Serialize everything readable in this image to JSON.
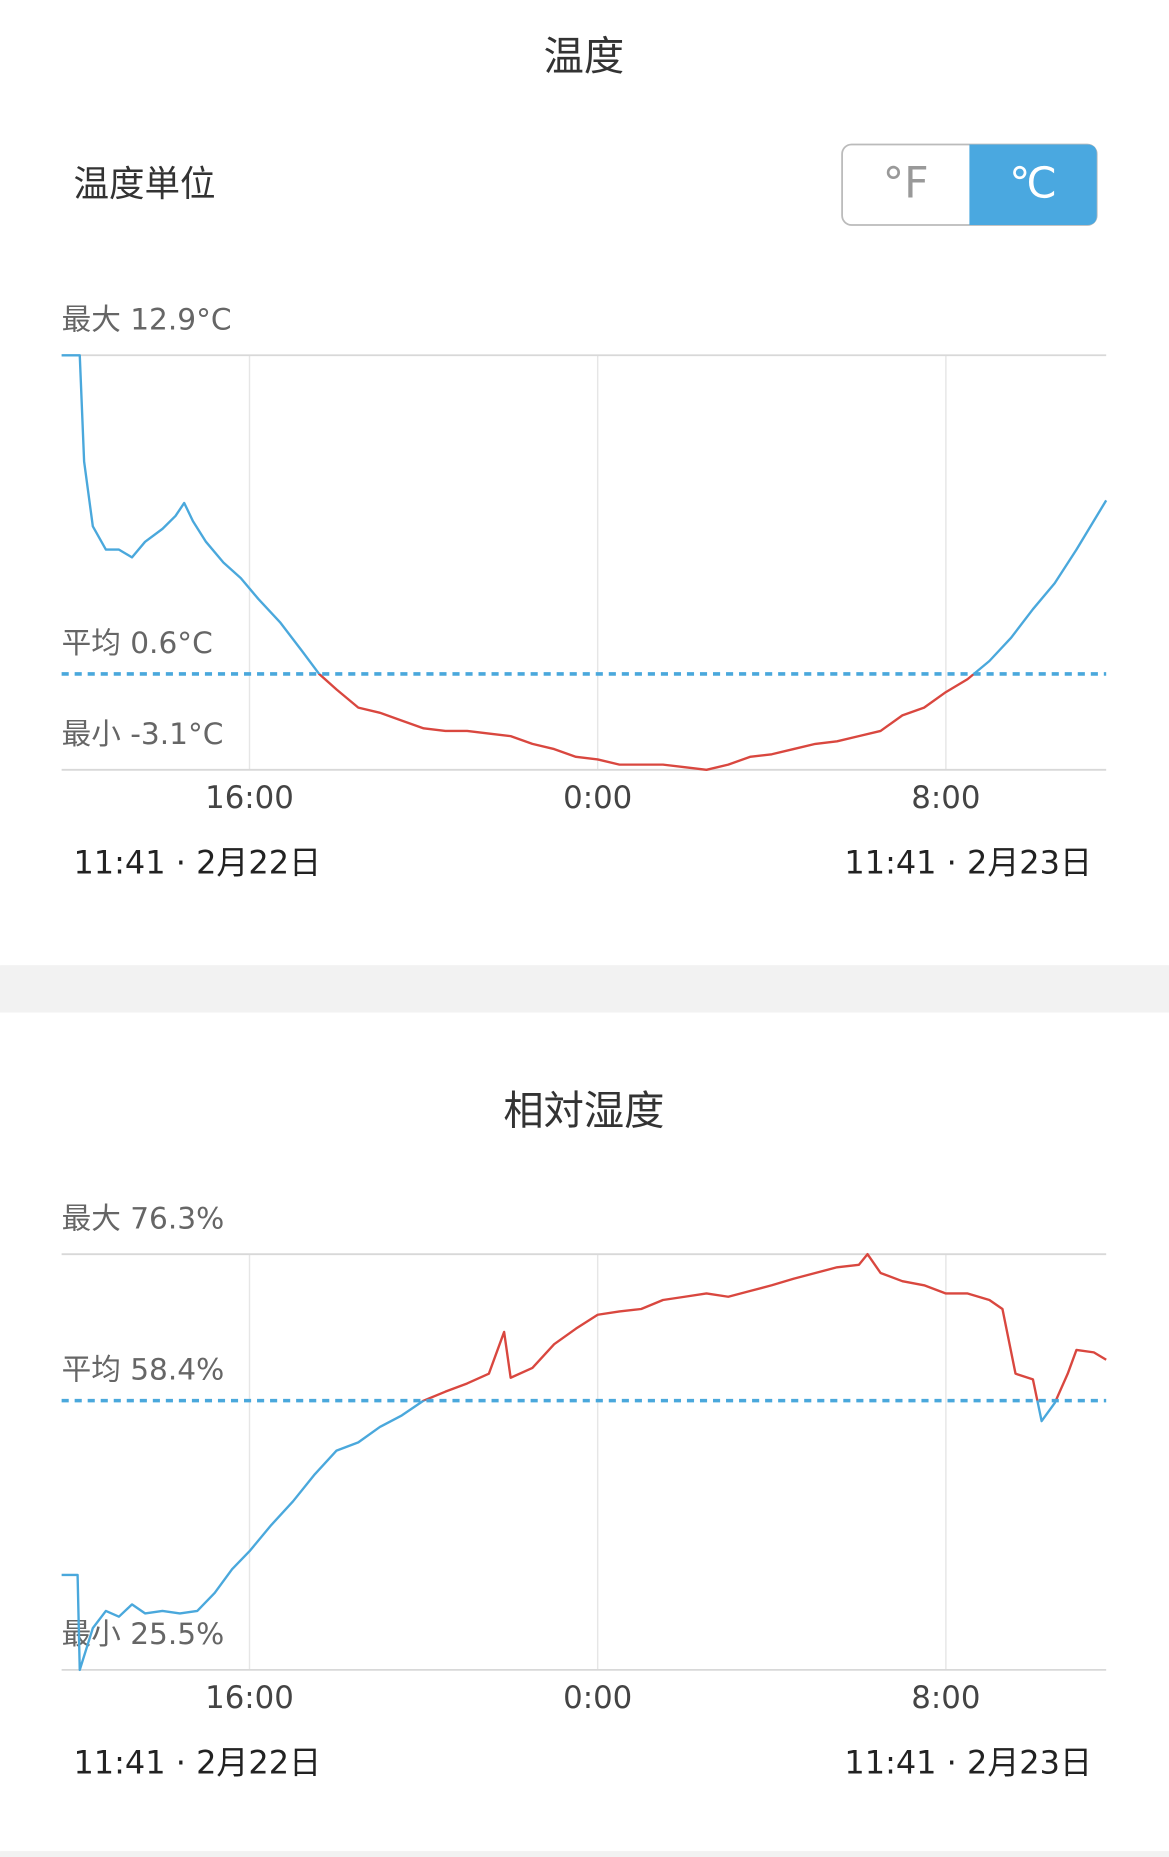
{
  "unit_setting": {
    "label": "温度単位",
    "options": [
      "°F",
      "℃"
    ],
    "selected": 1
  },
  "chart_data": [
    {
      "type": "line",
      "title": "温度",
      "x": [
        11.6833,
        11.9,
        12.1,
        12.2,
        12.4,
        12.7,
        13.0,
        13.3,
        13.6,
        14.0,
        14.3,
        14.5,
        14.7,
        15.0,
        15.4,
        15.8,
        16.2,
        16.7,
        17.2,
        17.6,
        18.0,
        18.5,
        19.0,
        19.5,
        20.0,
        20.5,
        21.0,
        21.5,
        22.0,
        22.5,
        23.0,
        23.5,
        24.0,
        24.5,
        25.0,
        25.5,
        26.0,
        26.5,
        27.0,
        27.5,
        28.0,
        28.5,
        29.0,
        29.5,
        30.0,
        30.5,
        31.0,
        31.5,
        32.0,
        32.5,
        33.0,
        33.5,
        34.0,
        34.5,
        35.0,
        35.6833
      ],
      "values": [
        12.9,
        12.9,
        12.9,
        8.8,
        6.3,
        5.4,
        5.4,
        5.1,
        5.7,
        6.2,
        6.7,
        7.2,
        6.5,
        5.7,
        4.9,
        4.3,
        3.5,
        2.6,
        1.5,
        0.6,
        0.0,
        -0.7,
        -0.9,
        -1.2,
        -1.5,
        -1.6,
        -1.6,
        -1.7,
        -1.8,
        -2.1,
        -2.3,
        -2.6,
        -2.7,
        -2.9,
        -2.9,
        -2.9,
        -3.0,
        -3.1,
        -2.9,
        -2.6,
        -2.5,
        -2.3,
        -2.1,
        -2.0,
        -1.8,
        -1.6,
        -1.0,
        -0.7,
        -0.1,
        0.4,
        1.1,
        2.0,
        3.1,
        4.1,
        5.4,
        7.3
      ],
      "color_above": "#4aa8dc",
      "color_below": "#d9473f",
      "xlim": [
        11.6833,
        35.6833
      ],
      "xticks": [
        {
          "value": 16,
          "label": "16:00"
        },
        {
          "value": 24,
          "label": "0:00"
        },
        {
          "value": 32,
          "label": "8:00"
        }
      ],
      "x_range_labels": [
        "11:41 · 2月22日",
        "11:41 · 2月23日"
      ],
      "ylim": [
        -3.1,
        12.9
      ],
      "yticks": [
        {
          "value": -3.1,
          "label": "最小 -3.1°C"
        },
        {
          "value": 12.9,
          "label": "最大 12.9°C"
        }
      ],
      "average": {
        "value": 0.6,
        "label": "平均 0.6°C"
      }
    },
    {
      "type": "line",
      "title": "相対湿度",
      "x": [
        11.6833,
        12.05,
        12.1,
        12.4,
        12.7,
        13.0,
        13.3,
        13.6,
        14.0,
        14.4,
        14.8,
        15.2,
        15.6,
        16.0,
        16.5,
        17.0,
        17.5,
        18.0,
        18.5,
        19.0,
        19.5,
        20.0,
        20.5,
        21.0,
        21.5,
        21.85,
        22.0,
        22.5,
        23.0,
        23.5,
        24.0,
        24.5,
        25.0,
        25.5,
        26.0,
        26.5,
        27.0,
        27.5,
        28.0,
        28.5,
        29.0,
        29.5,
        30.0,
        30.2,
        30.5,
        31.0,
        31.5,
        32.0,
        32.5,
        33.0,
        33.3,
        33.6,
        34.0,
        34.2,
        34.5,
        34.8,
        35.0,
        35.4,
        35.6833
      ],
      "values": [
        37.1,
        37.1,
        25.5,
        30.6,
        32.7,
        32.0,
        33.5,
        32.4,
        32.7,
        32.4,
        32.7,
        34.9,
        37.8,
        40.0,
        43.2,
        46.1,
        49.4,
        52.3,
        53.3,
        55.2,
        56.6,
        58.4,
        59.5,
        60.5,
        61.7,
        66.8,
        61.2,
        62.4,
        65.3,
        67.2,
        68.9,
        69.3,
        69.6,
        70.7,
        71.1,
        71.5,
        71.1,
        71.8,
        72.5,
        73.3,
        74.0,
        74.7,
        75.0,
        76.3,
        74.0,
        73.0,
        72.5,
        71.5,
        71.5,
        70.7,
        69.6,
        61.7,
        61.0,
        55.9,
        58.1,
        61.7,
        64.6,
        64.3,
        63.4
      ],
      "color_above": "#d9473f",
      "color_below": "#4aa8dc",
      "xlim": [
        11.6833,
        35.6833
      ],
      "xticks": [
        {
          "value": 16,
          "label": "16:00"
        },
        {
          "value": 24,
          "label": "0:00"
        },
        {
          "value": 32,
          "label": "8:00"
        }
      ],
      "x_range_labels": [
        "11:41 · 2月22日",
        "11:41 · 2月23日"
      ],
      "ylim": [
        25.5,
        76.3
      ],
      "yticks": [
        {
          "value": 25.5,
          "label": "最小 25.5%"
        },
        {
          "value": 76.3,
          "label": "最大 76.3%"
        }
      ],
      "average": {
        "value": 58.4,
        "label": "平均 58.4%"
      }
    }
  ]
}
